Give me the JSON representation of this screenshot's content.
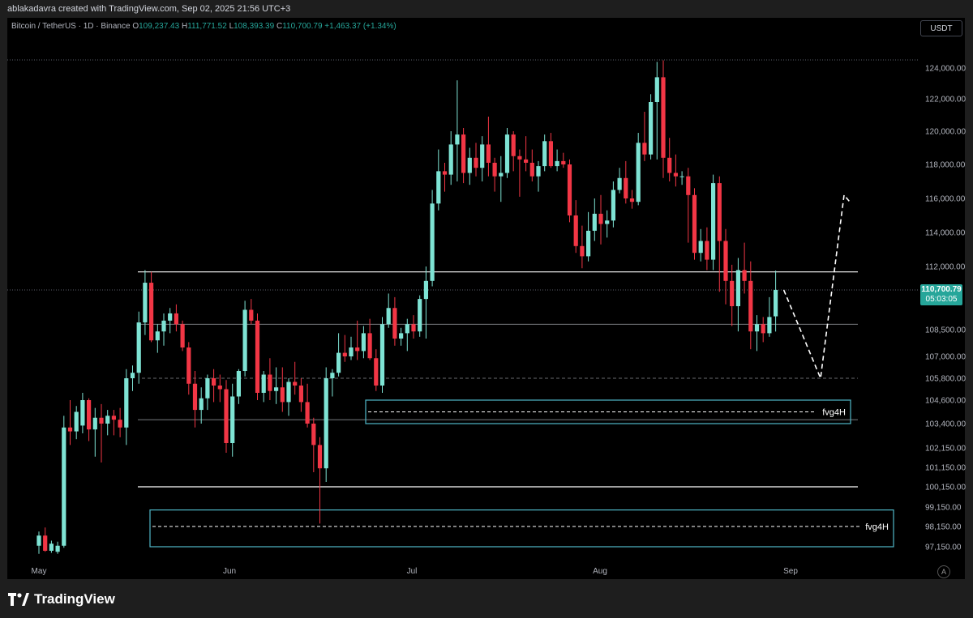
{
  "header": {
    "attribution": "ablakadavra created with TradingView.com, Sep 02, 2025 21:56 UTC+3"
  },
  "legend": {
    "symbol": "Bitcoin / TetherUS · 1D · Binance",
    "open_label": "O",
    "open": "109,237.43",
    "high_label": "H",
    "high": "111,771.52",
    "low_label": "L",
    "low": "108,393.39",
    "close_label": "C",
    "close": "110,700.79",
    "change": "+1,463.37 (+1.34%)"
  },
  "currency_button": "USDT",
  "last_price": {
    "price": "110,700.79",
    "countdown": "05:03:05"
  },
  "footer": {
    "brand": "TradingView"
  },
  "auto_scale_label": "A",
  "colors": {
    "up": "#7ee3d4",
    "down": "#f23645",
    "fvg_border": "#4fb8c9",
    "accent": "#26a69a"
  },
  "chart_data": {
    "type": "candlestick",
    "x_labels": [
      "May",
      "Jun",
      "Jul",
      "Aug",
      "Sep"
    ],
    "y_ticks": [
      124000,
      122000,
      120000,
      118000,
      116000,
      114000,
      112000,
      108500,
      107000,
      105800,
      104600,
      103400,
      102150,
      101150,
      100150,
      99150,
      98150,
      97150
    ],
    "y_tick_labels": [
      "124,000.00",
      "122,000.00",
      "120,000.00",
      "118,000.00",
      "116,000.00",
      "114,000.00",
      "112,000.00",
      "108,500.00",
      "107,000.00",
      "105,800.00",
      "104,600.00",
      "103,400.00",
      "102,150.00",
      "101,150.00",
      "100,150.00",
      "99,150.00",
      "98,150.00",
      "97,150.00"
    ],
    "candles": [
      [
        97200,
        97900,
        96800,
        97700
      ],
      [
        97700,
        98100,
        96900,
        96950
      ],
      [
        96950,
        97450,
        96850,
        97300
      ],
      [
        96900,
        97400,
        96800,
        97200
      ],
      [
        97200,
        103800,
        97100,
        103200
      ],
      [
        103200,
        104600,
        102300,
        103000
      ],
      [
        103000,
        104300,
        102600,
        104000
      ],
      [
        103300,
        105000,
        102900,
        104600
      ],
      [
        104600,
        104700,
        102500,
        103100
      ],
      [
        103100,
        104200,
        101700,
        103700
      ],
      [
        103700,
        104400,
        101400,
        103400
      ],
      [
        103400,
        104100,
        102800,
        103800
      ],
      [
        103800,
        104100,
        102800,
        103600
      ],
      [
        103600,
        104200,
        102700,
        103200
      ],
      [
        103200,
        106300,
        102300,
        105800
      ],
      [
        105800,
        106500,
        105100,
        106100
      ],
      [
        106100,
        109500,
        105500,
        108900
      ],
      [
        108900,
        111800,
        108200,
        111100
      ],
      [
        111100,
        111700,
        107800,
        107900
      ],
      [
        107900,
        108800,
        107200,
        108400
      ],
      [
        108400,
        109400,
        107600,
        109000
      ],
      [
        109000,
        109700,
        108300,
        109400
      ],
      [
        109400,
        109900,
        108400,
        108800
      ],
      [
        108800,
        109000,
        107300,
        107500
      ],
      [
        107500,
        107800,
        104900,
        105500
      ],
      [
        105500,
        106200,
        103200,
        104100
      ],
      [
        104100,
        105300,
        103400,
        104700
      ],
      [
        104700,
        106000,
        104100,
        105800
      ],
      [
        105800,
        106300,
        104500,
        105400
      ],
      [
        105400,
        106000,
        104500,
        105200
      ],
      [
        105200,
        105700,
        101900,
        102400
      ],
      [
        102400,
        105500,
        101700,
        104800
      ],
      [
        104800,
        106300,
        104400,
        106200
      ],
      [
        106200,
        110100,
        105900,
        109600
      ],
      [
        109600,
        110200,
        108800,
        109000
      ],
      [
        109000,
        109400,
        104600,
        105000
      ],
      [
        105000,
        106200,
        104500,
        106000
      ],
      [
        106000,
        106900,
        104600,
        105100
      ],
      [
        105100,
        106400,
        104400,
        105300
      ],
      [
        105300,
        106400,
        104000,
        104500
      ],
      [
        104500,
        105800,
        103800,
        105600
      ],
      [
        105600,
        106700,
        104900,
        105400
      ],
      [
        105400,
        105800,
        104000,
        104500
      ],
      [
        104500,
        105500,
        103200,
        103400
      ],
      [
        103400,
        103700,
        100900,
        102300
      ],
      [
        102300,
        102700,
        98300,
        101100
      ],
      [
        101100,
        106400,
        100400,
        105800
      ],
      [
        105800,
        106300,
        104800,
        106100
      ],
      [
        106100,
        108300,
        105900,
        107200
      ],
      [
        107200,
        108200,
        106700,
        107000
      ],
      [
        107000,
        108100,
        106800,
        107500
      ],
      [
        107500,
        109000,
        106800,
        107300
      ],
      [
        107300,
        108700,
        106900,
        108300
      ],
      [
        108300,
        109100,
        106800,
        106900
      ],
      [
        106900,
        107400,
        105100,
        105400
      ],
      [
        105400,
        109200,
        105000,
        108800
      ],
      [
        108800,
        110500,
        108600,
        109700
      ],
      [
        109700,
        110300,
        107600,
        108000
      ],
      [
        108000,
        108600,
        107600,
        108300
      ],
      [
        108300,
        109100,
        107300,
        108800
      ],
      [
        108800,
        109300,
        108000,
        108400
      ],
      [
        108400,
        110400,
        108100,
        110200
      ],
      [
        110200,
        112000,
        108000,
        111200
      ],
      [
        111200,
        116500,
        110900,
        115700
      ],
      [
        115700,
        118900,
        115300,
        117600
      ],
      [
        117600,
        118100,
        116400,
        117400
      ],
      [
        117400,
        120000,
        116800,
        119200
      ],
      [
        119200,
        123200,
        117000,
        119800
      ],
      [
        119800,
        120200,
        116900,
        117500
      ],
      [
        117500,
        119000,
        116800,
        118400
      ],
      [
        118400,
        119300,
        117300,
        117800
      ],
      [
        117800,
        119700,
        117000,
        119200
      ],
      [
        119200,
        120900,
        117300,
        118100
      ],
      [
        118100,
        118400,
        116400,
        117300
      ],
      [
        117300,
        118500,
        115800,
        117500
      ],
      [
        117500,
        120200,
        117200,
        119800
      ],
      [
        119800,
        120000,
        117600,
        118500
      ],
      [
        118500,
        118900,
        116100,
        118300
      ],
      [
        118300,
        119700,
        117600,
        118100
      ],
      [
        118100,
        118900,
        117000,
        117300
      ],
      [
        117300,
        118200,
        116400,
        117900
      ],
      [
        117900,
        119800,
        117600,
        119400
      ],
      [
        119400,
        119900,
        117800,
        117900
      ],
      [
        117900,
        118900,
        117600,
        118200
      ],
      [
        118200,
        118700,
        117800,
        118000
      ],
      [
        118000,
        118300,
        114600,
        115000
      ],
      [
        115000,
        115900,
        112800,
        113200
      ],
      [
        113200,
        114400,
        111900,
        112600
      ],
      [
        112600,
        115200,
        112300,
        114100
      ],
      [
        114100,
        116000,
        113500,
        115100
      ],
      [
        115100,
        116200,
        113300,
        114500
      ],
      [
        114500,
        115300,
        113700,
        114700
      ],
      [
        114700,
        117000,
        114300,
        116500
      ],
      [
        116500,
        117800,
        116300,
        117200
      ],
      [
        117200,
        118200,
        115700,
        116000
      ],
      [
        116000,
        116500,
        115400,
        115800
      ],
      [
        115800,
        119900,
        115600,
        119300
      ],
      [
        119300,
        121200,
        118200,
        118600
      ],
      [
        118600,
        122300,
        118300,
        121800
      ],
      [
        121800,
        124400,
        118300,
        123400
      ],
      [
        123400,
        124500,
        117200,
        118400
      ],
      [
        118400,
        119600,
        117000,
        117500
      ],
      [
        117500,
        118600,
        116700,
        117300
      ],
      [
        117300,
        117600,
        116800,
        117300
      ],
      [
        117300,
        117800,
        113400,
        116200
      ],
      [
        116200,
        116600,
        112400,
        112800
      ],
      [
        112800,
        114200,
        112300,
        113500
      ],
      [
        113500,
        114300,
        111800,
        112400
      ],
      [
        112400,
        117400,
        111800,
        116900
      ],
      [
        116900,
        117300,
        110600,
        113500
      ],
      [
        113500,
        114200,
        109900,
        111200
      ],
      [
        111200,
        112100,
        108700,
        109800
      ],
      [
        109800,
        112500,
        108400,
        111800
      ],
      [
        111800,
        113400,
        110500,
        111200
      ],
      [
        111200,
        112300,
        107400,
        108400
      ],
      [
        108400,
        109300,
        107300,
        108800
      ],
      [
        108800,
        109200,
        107800,
        108300
      ],
      [
        108300,
        110300,
        108100,
        109200
      ],
      [
        109237.43,
        111771.52,
        108393.39,
        110700.79
      ]
    ],
    "levels": [
      111700,
      108800,
      105800,
      103600,
      100150
    ],
    "fvg_zones": [
      {
        "label": "fvg4H",
        "top": 104600,
        "bottom": 103400,
        "mid": 104000
      },
      {
        "label": "fvg4H",
        "top": 99000,
        "bottom": 97150,
        "mid": 98150
      }
    ],
    "projection_path": [
      110700,
      105800,
      116200,
      115800
    ]
  }
}
